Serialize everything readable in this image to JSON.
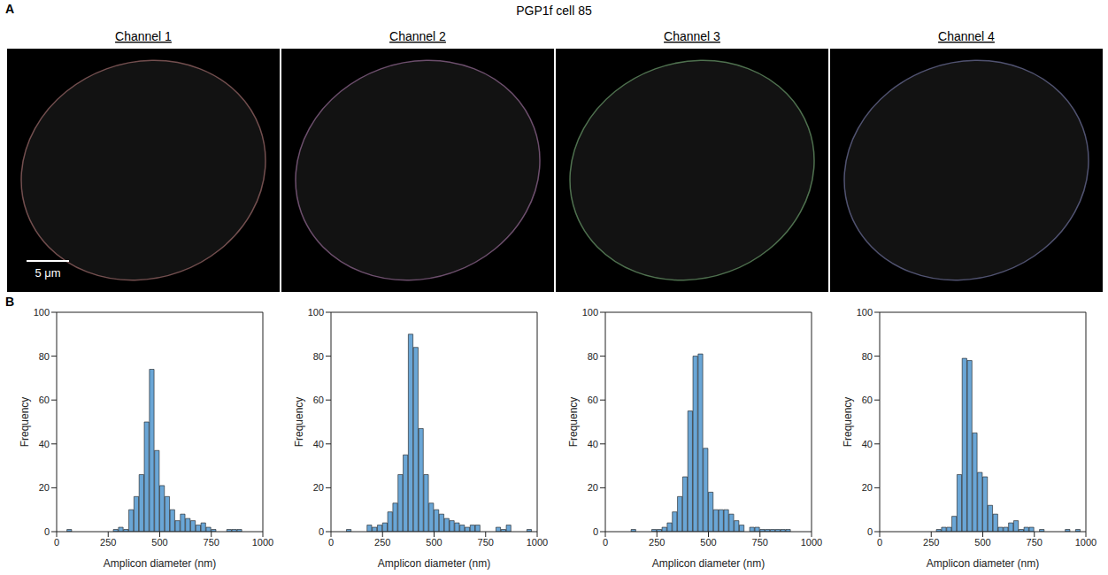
{
  "title": "PGP1f cell 85",
  "panel_a": {
    "letter": "A",
    "channels": [
      {
        "name": "Channel 1",
        "color": "#f4a3a3"
      },
      {
        "name": "Channel 2",
        "color": "#e6a3e6"
      },
      {
        "name": "Channel 3",
        "color": "#a3f0a3"
      },
      {
        "name": "Channel 4",
        "color": "#a8aef0"
      }
    ],
    "scale_bar": "5 μm"
  },
  "panel_b": {
    "letter": "B"
  },
  "chart_data": [
    {
      "type": "histogram",
      "bins": [
        0,
        25,
        50,
        75,
        100,
        125,
        150,
        175,
        200,
        225,
        250,
        275,
        300,
        325,
        350,
        375,
        400,
        425,
        450,
        475,
        500,
        525,
        550,
        575,
        600,
        625,
        650,
        675,
        700,
        725,
        750,
        775,
        800,
        825,
        850,
        875,
        900,
        925,
        950,
        975,
        1000
      ],
      "counts": [
        0,
        0,
        1,
        0,
        0,
        0,
        0,
        0,
        0,
        0,
        0,
        1,
        2,
        1,
        10,
        16,
        26,
        50,
        74,
        37,
        21,
        16,
        10,
        5,
        8,
        6,
        5,
        3,
        4,
        2,
        1,
        0,
        0,
        1,
        1,
        1,
        0,
        0,
        0,
        0
      ],
      "color": "#6aa6d6",
      "xlabel": "Amplicon diameter (nm)",
      "ylabel": "Frequency",
      "xlim": [
        0,
        1000
      ],
      "xticks": [
        0,
        250,
        500,
        750,
        1000
      ],
      "ylim": [
        0,
        100
      ],
      "yticks": [
        0,
        20,
        40,
        60,
        80,
        100
      ]
    },
    {
      "type": "histogram",
      "bins": [
        0,
        25,
        50,
        75,
        100,
        125,
        150,
        175,
        200,
        225,
        250,
        275,
        300,
        325,
        350,
        375,
        400,
        425,
        450,
        475,
        500,
        525,
        550,
        575,
        600,
        625,
        650,
        675,
        700,
        725,
        750,
        775,
        800,
        825,
        850,
        875,
        900,
        925,
        950,
        975,
        1000
      ],
      "counts": [
        0,
        0,
        0,
        1,
        0,
        0,
        0,
        3,
        2,
        3,
        4,
        9,
        13,
        26,
        35,
        90,
        84,
        47,
        26,
        13,
        10,
        8,
        6,
        5,
        4,
        3,
        2,
        3,
        3,
        0,
        0,
        0,
        2,
        1,
        3,
        0,
        0,
        0,
        1,
        0
      ],
      "color": "#6aa6d6",
      "xlabel": "Amplicon diameter (nm)",
      "ylabel": "Frequency",
      "xlim": [
        0,
        1000
      ],
      "xticks": [
        0,
        250,
        500,
        750,
        1000
      ],
      "ylim": [
        0,
        100
      ],
      "yticks": [
        0,
        20,
        40,
        60,
        80,
        100
      ]
    },
    {
      "type": "histogram",
      "bins": [
        0,
        25,
        50,
        75,
        100,
        125,
        150,
        175,
        200,
        225,
        250,
        275,
        300,
        325,
        350,
        375,
        400,
        425,
        450,
        475,
        500,
        525,
        550,
        575,
        600,
        625,
        650,
        675,
        700,
        725,
        750,
        775,
        800,
        825,
        850,
        875,
        900,
        925,
        950,
        975,
        1000
      ],
      "counts": [
        0,
        0,
        0,
        0,
        0,
        1,
        0,
        0,
        0,
        1,
        1,
        2,
        4,
        9,
        16,
        25,
        55,
        80,
        81,
        38,
        18,
        10,
        10,
        10,
        8,
        5,
        3,
        0,
        2,
        2,
        1,
        1,
        1,
        1,
        1,
        1,
        0,
        0,
        0,
        0
      ],
      "color": "#6aa6d6",
      "xlabel": "Amplicon diameter (nm)",
      "ylabel": "Frequency",
      "xlim": [
        0,
        1000
      ],
      "xticks": [
        0,
        250,
        500,
        750,
        1000
      ],
      "ylim": [
        0,
        100
      ],
      "yticks": [
        0,
        20,
        40,
        60,
        80,
        100
      ]
    },
    {
      "type": "histogram",
      "bins": [
        0,
        25,
        50,
        75,
        100,
        125,
        150,
        175,
        200,
        225,
        250,
        275,
        300,
        325,
        350,
        375,
        400,
        425,
        450,
        475,
        500,
        525,
        550,
        575,
        600,
        625,
        650,
        675,
        700,
        725,
        750,
        775,
        800,
        825,
        850,
        875,
        900,
        925,
        950,
        975,
        1000
      ],
      "counts": [
        0,
        0,
        0,
        0,
        0,
        0,
        0,
        0,
        0,
        0,
        0,
        1,
        2,
        2,
        7,
        26,
        79,
        78,
        45,
        27,
        25,
        12,
        8,
        2,
        2,
        4,
        5,
        1,
        2,
        2,
        0,
        1,
        0,
        0,
        0,
        0,
        1,
        0,
        1,
        0
      ],
      "color": "#6aa6d6",
      "xlabel": "Amplicon diameter (nm)",
      "ylabel": "Frequency",
      "xlim": [
        0,
        1000
      ],
      "xticks": [
        0,
        250,
        500,
        750,
        1000
      ],
      "ylim": [
        0,
        100
      ],
      "yticks": [
        0,
        20,
        40,
        60,
        80,
        100
      ]
    }
  ]
}
